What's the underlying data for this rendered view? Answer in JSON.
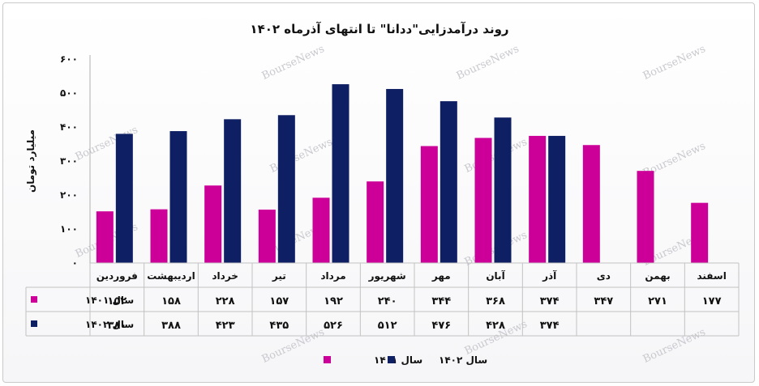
{
  "chart_data": {
    "type": "bar",
    "title": "روند درآمدزایی\"ددانا\" تا انتهای آذرماه ۱۴۰۲",
    "ylabel": "میلیارد تومان",
    "ylim": [
      0,
      600
    ],
    "yticks": [
      "۰",
      "۱۰۰",
      "۲۰۰",
      "۳۰۰",
      "۴۰۰",
      "۵۰۰",
      "۶۰۰"
    ],
    "categories": [
      "فروردین",
      "اردیبهشت",
      "خرداد",
      "تیر",
      "مرداد",
      "شهریور",
      "مهر",
      "آبان",
      "آذر",
      "دی",
      "بهمن",
      "اسفند"
    ],
    "series": [
      {
        "name": "سال ۱۴۰۱",
        "color": "#cc0099",
        "values": [
          152,
          158,
          228,
          157,
          192,
          240,
          344,
          368,
          374,
          347,
          271,
          177
        ],
        "labels": [
          "۱۵۲",
          "۱۵۸",
          "۲۲۸",
          "۱۵۷",
          "۱۹۲",
          "۲۴۰",
          "۳۴۴",
          "۳۶۸",
          "۳۷۴",
          "۳۴۷",
          "۲۷۱",
          "۱۷۷"
        ]
      },
      {
        "name": "سال ۱۴۰۲",
        "color": "#0f1f63",
        "values": [
          380,
          388,
          423,
          435,
          526,
          512,
          476,
          428,
          374,
          null,
          null,
          null
        ],
        "labels": [
          "۳۸۰",
          "۳۸۸",
          "۴۲۳",
          "۴۳۵",
          "۵۲۶",
          "۵۱۲",
          "۴۷۶",
          "۴۲۸",
          "۳۷۴",
          "",
          "",
          ""
        ]
      }
    ],
    "legend_position": "bottom",
    "data_table": true,
    "grid": false
  },
  "watermark": "BourseNews"
}
